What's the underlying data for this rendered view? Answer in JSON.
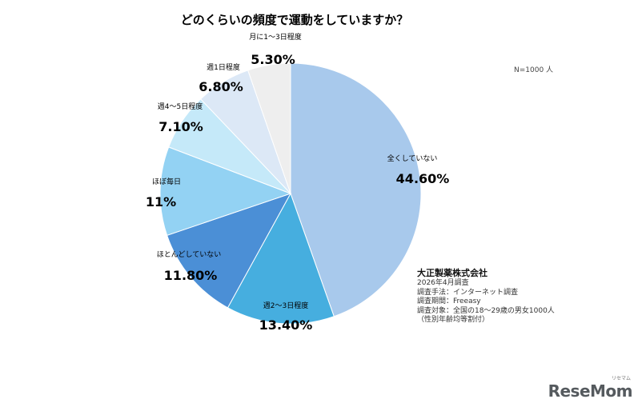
{
  "chart_data": {
    "type": "pie",
    "title": "どのくらいの頻度で運動をしていますか？",
    "sample_note": "N=1000 人",
    "start_angle_deg": 0,
    "direction": "clockwise",
    "slices": [
      {
        "label": "全くしていない",
        "value": 44.6,
        "display": "44.60%",
        "color": "#a8c9ec"
      },
      {
        "label": "週2〜3日程度",
        "value": 13.4,
        "display": "13.40%",
        "color": "#46aedf"
      },
      {
        "label": "ほとんどしていない",
        "value": 11.8,
        "display": "11.80%",
        "color": "#4b8fd6"
      },
      {
        "label": "ほぼ毎日",
        "value": 11.0,
        "display": "11%",
        "color": "#93d2f3"
      },
      {
        "label": "週4〜5日程度",
        "value": 7.1,
        "display": "7.10%",
        "color": "#c5e9f9"
      },
      {
        "label": "週1日程度",
        "value": 6.8,
        "display": "6.80%",
        "color": "#dce8f6"
      },
      {
        "label": "月に1〜3日程度",
        "value": 5.3,
        "display": "5.30%",
        "color": "#eeeeee"
      }
    ]
  },
  "source": {
    "company": "大正製薬株式会社",
    "lines": [
      "2026年4月調査",
      "調査手法：インターネット調査",
      "調査期間：Freeasy",
      "調査対象：全国の18〜29歳の男女1000人",
      "（性別年齢均等割付）"
    ]
  },
  "watermark": {
    "text": "ReseMom",
    "small": "リセマム"
  }
}
